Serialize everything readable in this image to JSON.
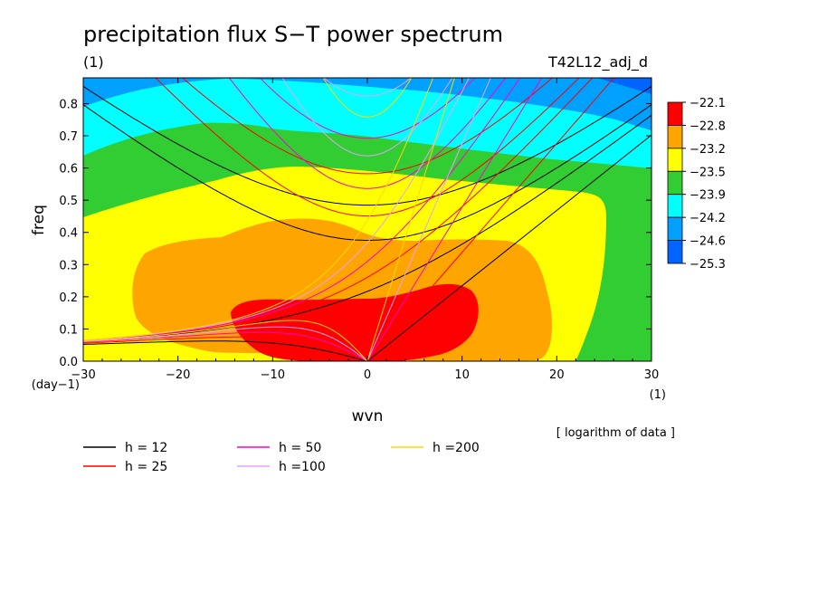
{
  "chart_data": {
    "type": "heatmap",
    "title": "precipitation flux S−T power spectrum",
    "subtitle_left": "(1)",
    "subtitle_right": "T42L12_adj_d",
    "xlabel": "wvn",
    "ylabel": "freq",
    "x_unit_label": "(1)",
    "y_unit_label": "(day−1)",
    "xlim": [
      -30,
      30
    ],
    "ylim": [
      0,
      0.88
    ],
    "xticks": [
      -30,
      -20,
      -10,
      0,
      10,
      20,
      30
    ],
    "xtick_labels": [
      "−30",
      "−20",
      "−10",
      "0",
      "10",
      "20",
      "30"
    ],
    "yticks": [
      0,
      0.1,
      0.2,
      0.3,
      0.4,
      0.5,
      0.6,
      0.7,
      0.8
    ],
    "ytick_labels": [
      "0.0",
      "0.1",
      "0.2",
      "0.3",
      "0.4",
      "0.5",
      "0.6",
      "0.7",
      "0.8"
    ],
    "colorbar": {
      "levels": [
        "−22.1",
        "−22.8",
        "−23.2",
        "−23.5",
        "−23.9",
        "−24.2",
        "−24.6",
        "−25.3"
      ],
      "colors": [
        "#ff0000",
        "#ffa500",
        "#ffff00",
        "#32cd32",
        "#00ffff",
        "#00a0ff",
        "#0064ff"
      ]
    },
    "note": "[ logarithm of data ]",
    "dispersion_curves": [
      {
        "name": "h = 12",
        "h": 12,
        "color": "#000000"
      },
      {
        "name": "h = 25",
        "h": 25,
        "color": "#ff0000"
      },
      {
        "name": "h = 50",
        "h": 50,
        "color": "#ff00c8"
      },
      {
        "name": "h =100",
        "h": 100,
        "color": "#e6a0ff"
      },
      {
        "name": "h =200",
        "h": 200,
        "color": "#ffd700"
      }
    ]
  }
}
